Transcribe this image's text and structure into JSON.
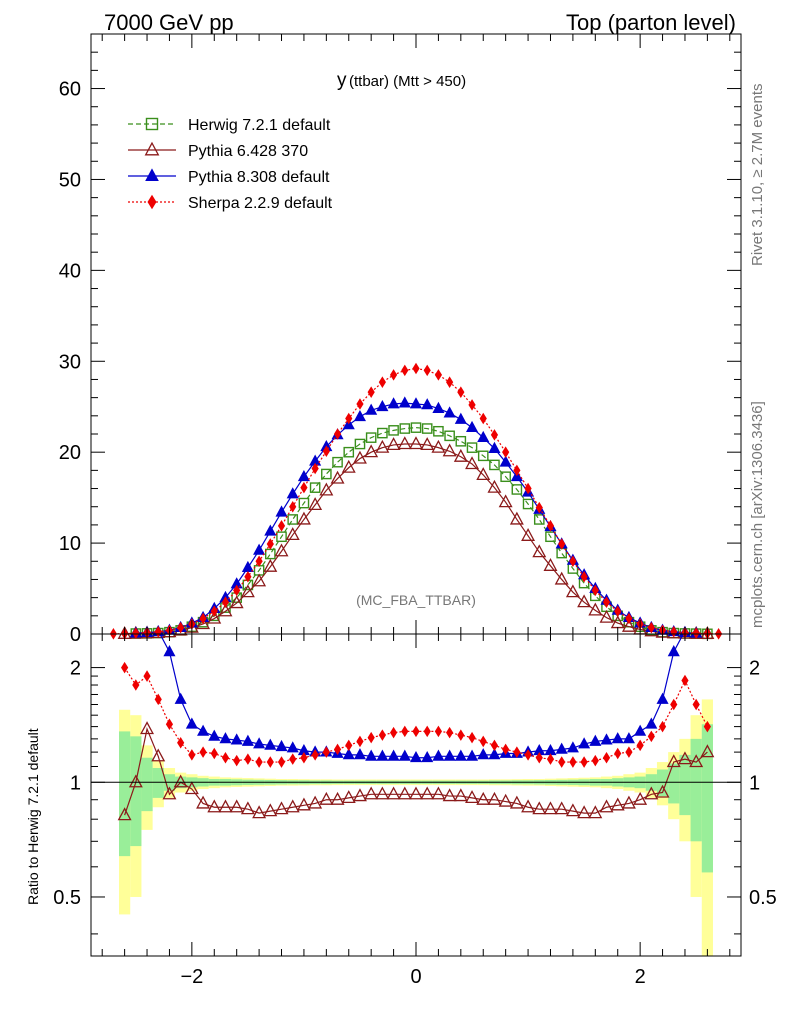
{
  "header": {
    "left": "7000 GeV pp",
    "right": "Top (parton level)",
    "side_top": "Rivet 3.1.10, ≥ 2.7M events",
    "side_bottom": "mcplots.cern.ch [arXiv:1306.3436]"
  },
  "chart_data": {
    "type": "line",
    "title_main": "y",
    "title_sub": "(ttbar) (Mtt > 450)",
    "watermark": "(MC_FBA_TTBAR)",
    "ratio_ylabel": "Ratio to Herwig 7.2.1 default",
    "x_ticks": [
      "−2",
      "0",
      "2"
    ],
    "y_ticks_main": [
      "0",
      "10",
      "20",
      "30",
      "40",
      "50",
      "60"
    ],
    "y_ticks_ratio": [
      "0.5",
      "1",
      "2"
    ],
    "xlim": [
      -2.9,
      2.9
    ],
    "ylim_main": [
      0,
      66
    ],
    "ylim_ratio": [
      0.35,
      2.45
    ],
    "ratio_log": true,
    "series": [
      {
        "name": "Herwig 7.2.1 default",
        "color": "#3a8f1c",
        "marker": "open-square",
        "line": "dashed",
        "x": [
          -2.5,
          -2.4,
          -2.3,
          -2.2,
          -2.1,
          -2.0,
          -1.9,
          -1.8,
          -1.7,
          -1.6,
          -1.5,
          -1.4,
          -1.3,
          -1.2,
          -1.1,
          -1.0,
          -0.9,
          -0.8,
          -0.7,
          -0.6,
          -0.5,
          -0.4,
          -0.3,
          -0.2,
          -0.1,
          0.0,
          0.1,
          0.2,
          0.3,
          0.4,
          0.5,
          0.6,
          0.7,
          0.8,
          0.9,
          1.0,
          1.1,
          1.2,
          1.3,
          1.4,
          1.5,
          1.6,
          1.7,
          1.8,
          1.9,
          2.0,
          2.1,
          2.2,
          2.3,
          2.4,
          2.5,
          2.6
        ],
        "y": [
          0.05,
          0.07,
          0.1,
          0.2,
          0.4,
          0.8,
          1.3,
          2.0,
          2.9,
          4.0,
          5.4,
          7.0,
          8.8,
          10.7,
          12.6,
          14.4,
          16.1,
          17.6,
          18.9,
          20.0,
          20.9,
          21.6,
          22.1,
          22.4,
          22.6,
          22.7,
          22.6,
          22.3,
          21.8,
          21.2,
          20.5,
          19.6,
          18.6,
          17.3,
          15.9,
          14.3,
          12.6,
          10.7,
          8.9,
          7.2,
          5.6,
          4.2,
          3.0,
          2.0,
          1.3,
          0.8,
          0.4,
          0.2,
          0.1,
          0.06,
          0.04,
          0.02
        ]
      },
      {
        "name": "Pythia 6.428 370",
        "color": "#8b1a1a",
        "marker": "open-triangle",
        "line": "solid",
        "x": [
          -2.6,
          -2.5,
          -2.4,
          -2.3,
          -2.2,
          -2.1,
          -2.0,
          -1.9,
          -1.8,
          -1.7,
          -1.6,
          -1.5,
          -1.4,
          -1.3,
          -1.2,
          -1.1,
          -1.0,
          -0.9,
          -0.8,
          -0.7,
          -0.6,
          -0.5,
          -0.4,
          -0.3,
          -0.2,
          -0.1,
          0.0,
          0.1,
          0.2,
          0.3,
          0.4,
          0.5,
          0.6,
          0.7,
          0.8,
          0.9,
          1.0,
          1.1,
          1.2,
          1.3,
          1.4,
          1.5,
          1.6,
          1.7,
          1.8,
          1.9,
          2.0,
          2.1,
          2.2,
          2.3,
          2.4,
          2.5,
          2.6
        ],
        "y": [
          0.02,
          0.05,
          0.08,
          0.12,
          0.2,
          0.4,
          0.7,
          1.1,
          1.7,
          2.5,
          3.4,
          4.6,
          5.8,
          7.4,
          9.1,
          10.9,
          12.6,
          14.2,
          15.8,
          17.1,
          18.3,
          19.3,
          20.0,
          20.5,
          20.8,
          20.9,
          20.9,
          20.8,
          20.5,
          20.1,
          19.5,
          18.7,
          17.5,
          16.1,
          14.5,
          12.6,
          10.8,
          9.0,
          7.5,
          6.0,
          4.6,
          3.5,
          2.6,
          1.8,
          1.2,
          0.8,
          0.5,
          0.3,
          0.15,
          0.08,
          0.05,
          0.03,
          0.02
        ],
        "ratio": [
          0.82,
          1.0,
          1.38,
          1.17,
          0.93,
          1.0,
          0.96,
          0.88,
          0.86,
          0.86,
          0.86,
          0.85,
          0.83,
          0.84,
          0.85,
          0.86,
          0.87,
          0.88,
          0.9,
          0.9,
          0.91,
          0.92,
          0.93,
          0.93,
          0.93,
          0.93,
          0.93,
          0.93,
          0.93,
          0.92,
          0.92,
          0.91,
          0.9,
          0.9,
          0.89,
          0.88,
          0.86,
          0.85,
          0.85,
          0.85,
          0.84,
          0.83,
          0.83,
          0.86,
          0.87,
          0.88,
          0.9,
          0.93,
          0.94,
          1.13,
          1.15,
          1.13,
          1.2
        ]
      },
      {
        "name": "Pythia 8.308 default",
        "color": "#0000cc",
        "marker": "filled-triangle",
        "line": "solid",
        "x": [
          -2.5,
          -2.4,
          -2.3,
          -2.2,
          -2.1,
          -2.0,
          -1.9,
          -1.8,
          -1.7,
          -1.6,
          -1.5,
          -1.4,
          -1.3,
          -1.2,
          -1.1,
          -1.0,
          -0.9,
          -0.8,
          -0.7,
          -0.6,
          -0.5,
          -0.4,
          -0.3,
          -0.2,
          -0.1,
          0.0,
          0.1,
          0.2,
          0.3,
          0.4,
          0.5,
          0.6,
          0.7,
          0.8,
          0.9,
          1.0,
          1.1,
          1.2,
          1.3,
          1.4,
          1.5,
          1.6,
          1.7,
          1.8,
          1.9,
          2.0,
          2.1,
          2.2,
          2.3,
          2.4,
          2.5
        ],
        "y": [
          0.1,
          0.15,
          0.25,
          0.4,
          0.7,
          1.2,
          1.8,
          2.8,
          4.0,
          5.5,
          7.3,
          9.2,
          11.3,
          13.4,
          15.4,
          17.3,
          19.0,
          20.6,
          21.9,
          23.0,
          23.9,
          24.6,
          25.0,
          25.3,
          25.4,
          25.3,
          25.2,
          24.8,
          24.3,
          23.6,
          22.7,
          21.6,
          20.4,
          18.9,
          17.3,
          15.6,
          13.7,
          11.8,
          9.9,
          8.1,
          6.5,
          5.0,
          3.7,
          2.6,
          1.8,
          1.2,
          0.7,
          0.4,
          0.25,
          0.15,
          0.08
        ],
        "ratio": [
          3.0,
          2.8,
          2.5,
          2.2,
          1.65,
          1.42,
          1.36,
          1.32,
          1.3,
          1.29,
          1.28,
          1.26,
          1.25,
          1.24,
          1.23,
          1.21,
          1.2,
          1.2,
          1.19,
          1.18,
          1.18,
          1.17,
          1.17,
          1.17,
          1.17,
          1.16,
          1.16,
          1.17,
          1.17,
          1.17,
          1.17,
          1.18,
          1.18,
          1.19,
          1.19,
          1.2,
          1.21,
          1.21,
          1.22,
          1.23,
          1.26,
          1.28,
          1.29,
          1.3,
          1.3,
          1.36,
          1.42,
          1.65,
          2.2,
          2.5,
          2.8
        ]
      },
      {
        "name": "Sherpa 2.2.9 default",
        "color": "#ee0000",
        "marker": "filled-diamond",
        "line": "dotted",
        "x": [
          -2.7,
          -2.6,
          -2.5,
          -2.4,
          -2.3,
          -2.2,
          -2.1,
          -2.0,
          -1.9,
          -1.8,
          -1.7,
          -1.6,
          -1.5,
          -1.4,
          -1.3,
          -1.2,
          -1.1,
          -1.0,
          -0.9,
          -0.8,
          -0.7,
          -0.6,
          -0.5,
          -0.4,
          -0.3,
          -0.2,
          -0.1,
          0.0,
          0.1,
          0.2,
          0.3,
          0.4,
          0.5,
          0.6,
          0.7,
          0.8,
          0.9,
          1.0,
          1.1,
          1.2,
          1.3,
          1.4,
          1.5,
          1.6,
          1.7,
          1.8,
          1.9,
          2.0,
          2.1,
          2.2,
          2.3,
          2.4,
          2.5,
          2.6,
          2.7
        ],
        "y": [
          0.02,
          0.04,
          0.1,
          0.15,
          0.25,
          0.4,
          0.7,
          1.1,
          1.7,
          2.5,
          3.5,
          4.8,
          6.3,
          8.0,
          9.9,
          11.9,
          14.0,
          16.1,
          18.2,
          20.1,
          22.0,
          23.7,
          25.3,
          26.6,
          27.7,
          28.5,
          29.0,
          29.2,
          29.0,
          28.5,
          27.7,
          26.6,
          25.2,
          23.7,
          21.9,
          20.0,
          18.0,
          16.0,
          13.9,
          11.9,
          9.9,
          8.0,
          6.3,
          4.8,
          3.5,
          2.5,
          1.7,
          1.1,
          0.7,
          0.4,
          0.25,
          0.15,
          0.1,
          0.05,
          0.02
        ],
        "ratio": [
          null,
          2.0,
          1.8,
          1.9,
          1.65,
          1.42,
          1.27,
          1.18,
          1.2,
          1.19,
          1.16,
          1.14,
          1.15,
          1.13,
          1.13,
          1.13,
          1.15,
          1.16,
          1.18,
          1.2,
          1.22,
          1.25,
          1.28,
          1.31,
          1.33,
          1.35,
          1.36,
          1.36,
          1.36,
          1.36,
          1.35,
          1.33,
          1.31,
          1.28,
          1.25,
          1.22,
          1.2,
          1.18,
          1.16,
          1.15,
          1.13,
          1.13,
          1.13,
          1.14,
          1.16,
          1.19,
          1.2,
          1.25,
          1.32,
          1.4,
          1.6,
          1.85,
          1.6,
          1.4,
          null
        ]
      }
    ],
    "ratio_band": {
      "x": [
        -2.6,
        -2.5,
        -2.4,
        -2.3,
        -2.2,
        -2.1,
        -2.0,
        -1.9,
        -1.8,
        -1.7,
        -1.6,
        -1.5,
        -1.4,
        -1.3,
        -1.2,
        -1.1,
        -1.0,
        -0.9,
        -0.8,
        -0.7,
        -0.6,
        -0.5,
        -0.4,
        -0.3,
        -0.2,
        -0.1,
        0.0,
        0.1,
        0.2,
        0.3,
        0.4,
        0.5,
        0.6,
        0.7,
        0.8,
        0.9,
        1.0,
        1.1,
        1.2,
        1.3,
        1.4,
        1.5,
        1.6,
        1.7,
        1.8,
        1.9,
        2.0,
        2.1,
        2.2,
        2.3,
        2.4,
        2.5,
        2.6
      ],
      "inner": [
        0.36,
        0.32,
        0.16,
        0.09,
        0.05,
        0.035,
        0.03,
        0.025,
        0.02,
        0.02,
        0.018,
        0.016,
        0.015,
        0.014,
        0.013,
        0.012,
        0.012,
        0.011,
        0.011,
        0.01,
        0.01,
        0.01,
        0.01,
        0.01,
        0.01,
        0.01,
        0.01,
        0.01,
        0.01,
        0.01,
        0.01,
        0.01,
        0.01,
        0.011,
        0.011,
        0.012,
        0.012,
        0.013,
        0.014,
        0.015,
        0.016,
        0.018,
        0.02,
        0.02,
        0.025,
        0.03,
        0.035,
        0.05,
        0.08,
        0.12,
        0.18,
        0.3,
        0.42
      ],
      "outer": [
        0.55,
        0.5,
        0.25,
        0.14,
        0.09,
        0.06,
        0.05,
        0.04,
        0.035,
        0.03,
        0.028,
        0.026,
        0.024,
        0.022,
        0.02,
        0.02,
        0.019,
        0.018,
        0.018,
        0.017,
        0.017,
        0.017,
        0.017,
        0.017,
        0.017,
        0.017,
        0.017,
        0.017,
        0.017,
        0.017,
        0.017,
        0.017,
        0.017,
        0.018,
        0.018,
        0.019,
        0.02,
        0.02,
        0.022,
        0.024,
        0.026,
        0.028,
        0.03,
        0.035,
        0.04,
        0.05,
        0.06,
        0.09,
        0.13,
        0.2,
        0.3,
        0.5,
        0.65
      ]
    }
  }
}
